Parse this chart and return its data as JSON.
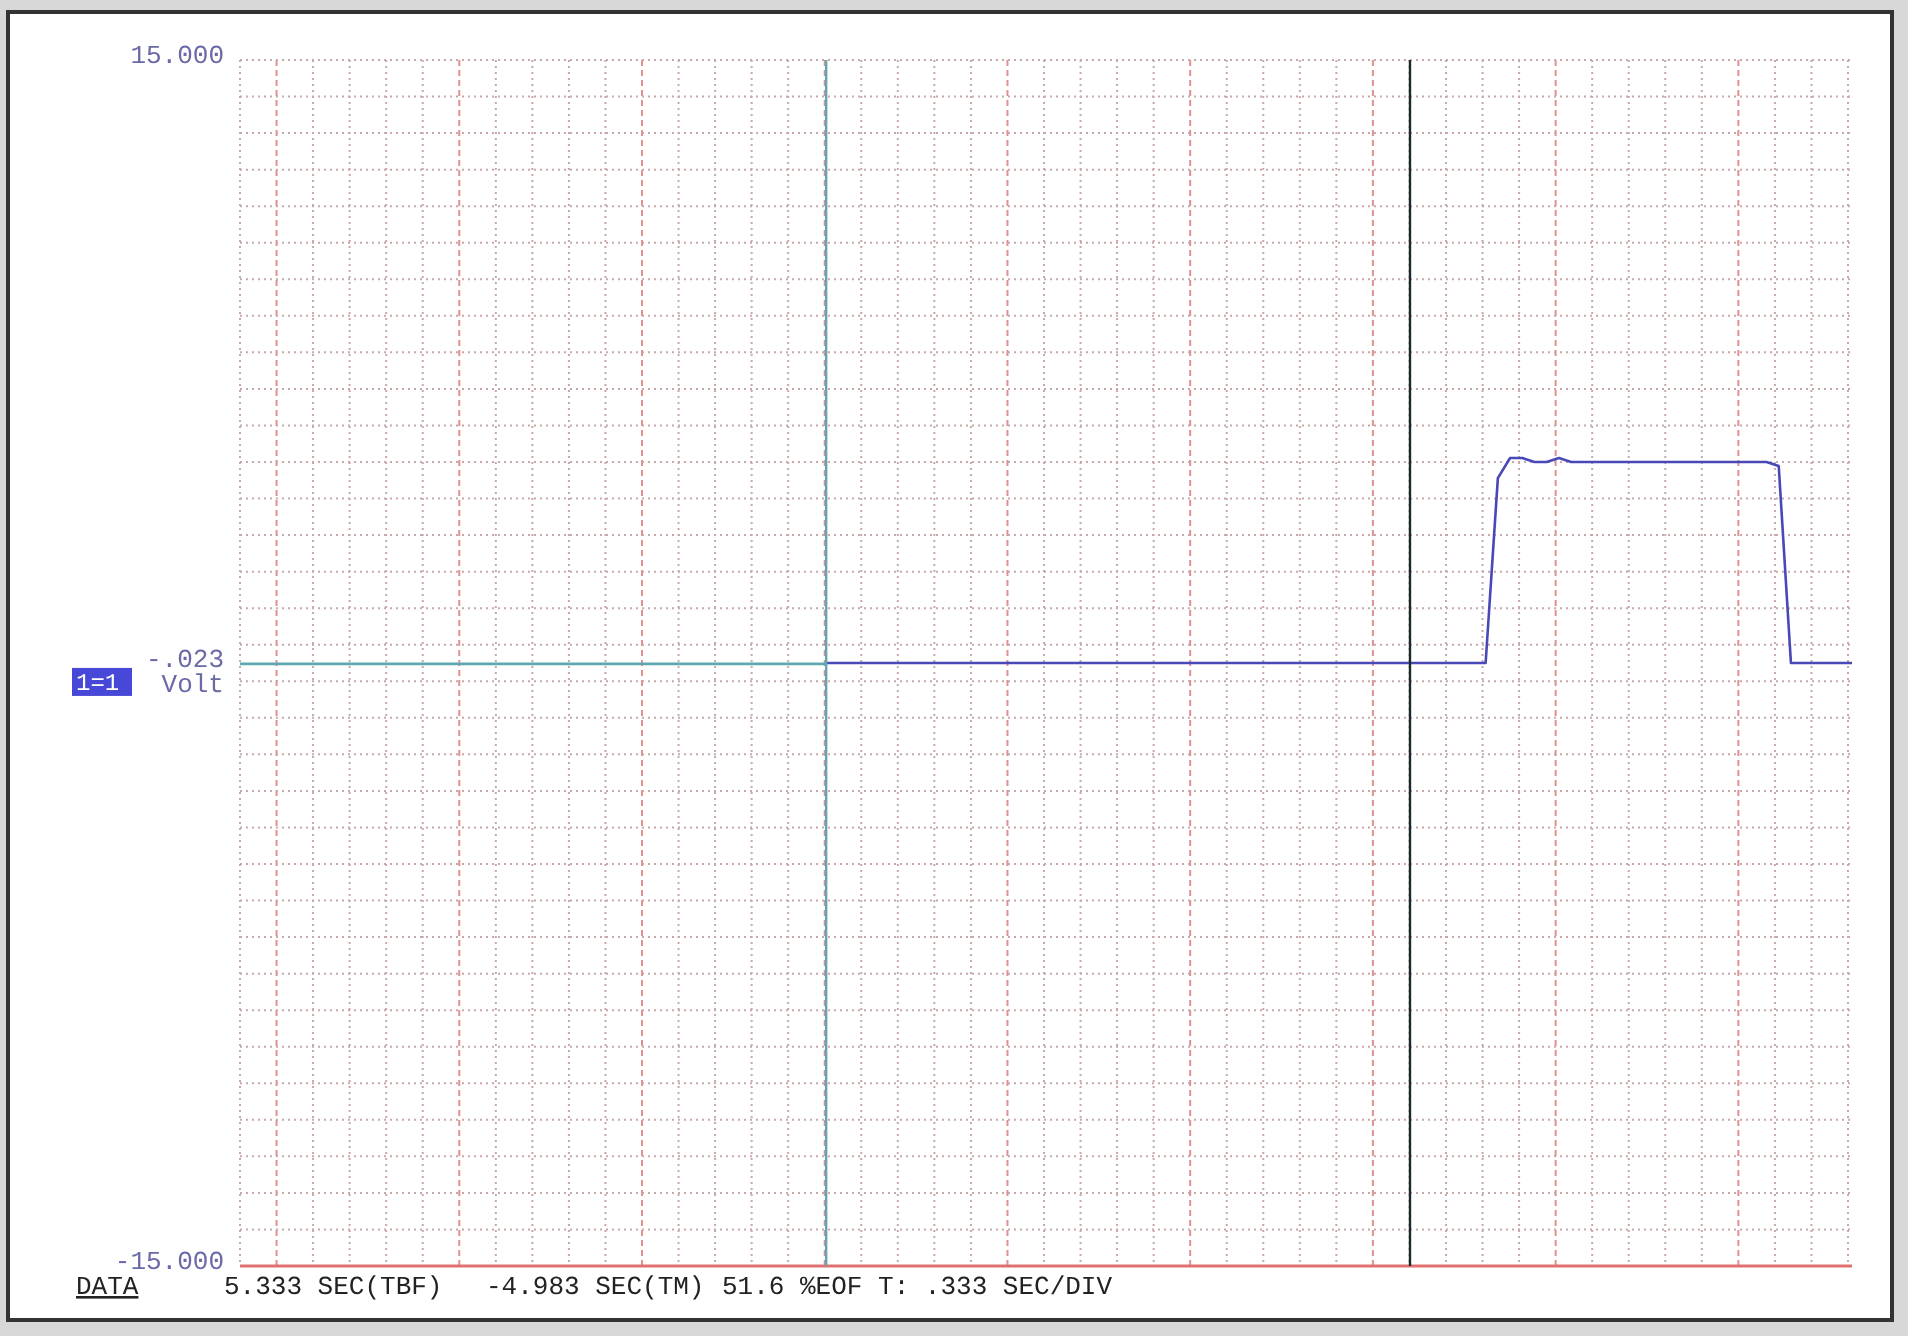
{
  "chart_data": {
    "type": "line",
    "ylabel": "Volt",
    "ylim": [
      -15,
      15
    ],
    "yticks": [
      {
        "value": 15,
        "label": "15.000"
      },
      {
        "value": -0.023,
        "label": "-.023"
      },
      {
        "value": -15,
        "label": "-15.000"
      }
    ],
    "grid": true,
    "marker": "none",
    "line_style": "solid",
    "categories": [
      null,
      null,
      null,
      null,
      null,
      null,
      null,
      null,
      null,
      null,
      null,
      null,
      null,
      null,
      null,
      null,
      null,
      null,
      null,
      null,
      null,
      null,
      null,
      null,
      null,
      null,
      null,
      null,
      null,
      null,
      null,
      null,
      null,
      null,
      null,
      null,
      null,
      null,
      null,
      null,
      null,
      null,
      null,
      null,
      null,
      null,
      null,
      null,
      null,
      null,
      null,
      null,
      null,
      null,
      null,
      null,
      null,
      null,
      null,
      null,
      null,
      null,
      null,
      null,
      null,
      null,
      null,
      null,
      null,
      null,
      null,
      null,
      null,
      null,
      null,
      null,
      null,
      null,
      null,
      null,
      null,
      null,
      null,
      null,
      null,
      null,
      null,
      null,
      null,
      null,
      null,
      null,
      null,
      null,
      null,
      null,
      null,
      null,
      null,
      null,
      null,
      null,
      null,
      null,
      null,
      null,
      null,
      null,
      null,
      null,
      null,
      null,
      null,
      null,
      null,
      null,
      null,
      null,
      null,
      null,
      null,
      null,
      null,
      null,
      null,
      null,
      null,
      null,
      null,
      null,
      null,
      null,
      null
    ],
    "series": [
      {
        "color": "#5fa8b0",
        "values": [
          -0.023,
          -0.023,
          -0.023,
          -0.023,
          -0.023,
          -0.023,
          -0.023,
          -0.023,
          -0.023,
          -0.023,
          -0.023,
          -0.023,
          -0.023,
          -0.023,
          -0.023,
          -0.023,
          -0.023,
          -0.023,
          -0.023,
          -0.023,
          -0.023,
          -0.023,
          -0.023,
          -0.023,
          -0.023,
          -0.023,
          -0.023,
          -0.023,
          -0.023,
          -0.023,
          -0.023,
          -0.023,
          -0.023,
          -0.023,
          -0.023,
          -0.023,
          -0.023,
          -0.023,
          -0.023,
          -0.023,
          -0.023,
          -0.023,
          -0.023,
          -0.023,
          -0.023,
          -0.023,
          -0.023,
          -0.023,
          -0.023,
          null,
          null,
          null,
          null,
          null,
          null,
          null,
          null,
          null,
          null,
          null,
          null,
          null,
          null,
          null,
          null,
          null,
          null,
          null,
          null,
          null,
          null,
          null,
          null,
          null,
          null,
          null,
          null,
          null,
          null,
          null,
          null,
          null,
          null,
          null,
          null,
          null,
          null,
          null,
          null,
          null,
          null,
          null,
          null,
          null,
          null,
          null,
          null,
          null,
          null,
          null,
          null,
          null,
          null,
          null,
          null,
          null,
          null,
          null,
          null,
          null,
          null,
          null,
          null,
          null,
          null,
          null,
          null,
          null,
          null,
          null,
          null,
          null,
          null,
          null,
          null,
          null,
          null,
          null,
          null,
          null,
          null,
          null,
          null
        ]
      },
      {
        "color": "#4848b8",
        "values": [
          null,
          null,
          null,
          null,
          null,
          null,
          null,
          null,
          null,
          null,
          null,
          null,
          null,
          null,
          null,
          null,
          null,
          null,
          null,
          null,
          null,
          null,
          null,
          null,
          null,
          null,
          null,
          null,
          null,
          null,
          null,
          null,
          null,
          null,
          null,
          null,
          null,
          null,
          null,
          null,
          null,
          null,
          null,
          null,
          null,
          null,
          null,
          null,
          0,
          0,
          0,
          0,
          0,
          0,
          0,
          0,
          0,
          0,
          0,
          0,
          0,
          0,
          0,
          0,
          0,
          0,
          0,
          0,
          0,
          0,
          0,
          0,
          0,
          0,
          0,
          0,
          0,
          0,
          0,
          0,
          0,
          0,
          0,
          0,
          0,
          0,
          0,
          0,
          0,
          0,
          0,
          0,
          0,
          0,
          0,
          0,
          0,
          0,
          0,
          0,
          0,
          0,
          0,
          4.6,
          5.1,
          5.1,
          5.0,
          5.0,
          5.1,
          5.0,
          5.0,
          5.0,
          5.0,
          5.0,
          5.0,
          5.0,
          5.0,
          5.0,
          5.0,
          5.0,
          5.0,
          5.0,
          5.0,
          5.0,
          5.0,
          5.0,
          4.9,
          0,
          0,
          0,
          0,
          0,
          0
        ]
      }
    ],
    "annotations": [
      "1=1",
      "DATA",
      "5.333 SEC(TBF)",
      "-4.983 SEC(TM)",
      "51.6 %EOF T: .333 SEC/DIV"
    ]
  }
}
